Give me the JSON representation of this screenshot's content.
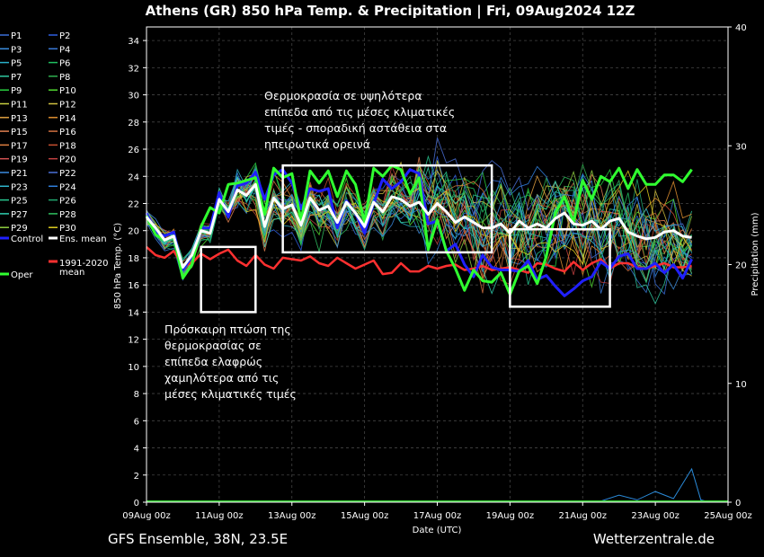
{
  "header": {
    "title": "Athens  (GR)  850 hPa Temp. & Precipitation | Fri, 09Aug2024 12Z"
  },
  "footer": {
    "left": "GFS Ensemble, 38N, 23.5E",
    "right": "Wetterzentrale.de"
  },
  "chart_data": {
    "type": "line",
    "x_ticks": [
      "09Aug 00z",
      "11Aug 00z",
      "13Aug 00z",
      "15Aug 00z",
      "17Aug 00z",
      "19Aug 00z",
      "21Aug 00z",
      "23Aug 00z",
      "25Aug 00z"
    ],
    "xlabel": "Date (UTC)",
    "ylabel": "850 hPa Temp. (°C)",
    "y2label": "Precipitation (mm)",
    "ylim": [
      0,
      35
    ],
    "y_ticks": [
      0,
      2,
      4,
      6,
      8,
      10,
      12,
      14,
      16,
      18,
      20,
      22,
      24,
      26,
      28,
      30,
      32,
      34
    ],
    "y2lim": [
      0,
      40
    ],
    "y2_ticks": [
      0,
      10,
      20,
      30,
      40
    ],
    "grid": true,
    "legend_entries": [
      "P1",
      "P2",
      "P3",
      "P4",
      "P5",
      "P6",
      "P7",
      "P8",
      "P9",
      "P10",
      "P11",
      "P12",
      "P13",
      "P14",
      "P15",
      "P16",
      "P17",
      "P18",
      "P19",
      "P20",
      "P21",
      "P22",
      "P23",
      "P24",
      "P25",
      "P26",
      "P27",
      "P28",
      "P29",
      "P30",
      "Control",
      "Ens. mean",
      "Oper",
      "1991-2020 mean"
    ],
    "legend_colors": [
      "#3a6fd8",
      "#2f5fe0",
      "#3c8ee0",
      "#3a7ad8",
      "#28b0c8",
      "#20c060",
      "#30c8a0",
      "#30b050",
      "#28d040",
      "#50d830",
      "#c8d040",
      "#d0c040",
      "#e0a040",
      "#e09030",
      "#e08050",
      "#d07040",
      "#e08040",
      "#c85030",
      "#d05050",
      "#c04040",
      "#3a8ae0",
      "#4a70d8",
      "#30b8d0",
      "#3080e0",
      "#28c890",
      "#20a870",
      "#30d0b0",
      "#30c060",
      "#90d040",
      "#e0d020",
      "#2020ff",
      "#ffffff",
      "#30ff30",
      "#ff3030"
    ],
    "series": [
      {
        "name": "Ens. mean",
        "values": [
          21,
          20.2,
          19.3,
          19.6,
          17.3,
          18.2,
          20,
          19.8,
          22.3,
          21.4,
          23,
          22.6,
          23.4,
          20.3,
          22.4,
          21.6,
          21.9,
          20.4,
          22.4,
          21.5,
          21.8,
          20.6,
          22.1,
          21.3,
          20.3,
          22.1,
          21.4,
          22.5,
          22.3,
          21.8,
          22.1,
          21.2,
          22,
          21.4,
          20.6,
          21,
          20.6,
          20.2,
          20.2,
          20.5,
          19.8,
          20.7,
          20.2,
          20.5,
          20.2,
          20.9,
          21.3,
          20.5,
          20.4,
          20.7,
          20.1,
          20.7,
          20.9,
          19.9,
          19.6,
          19.4,
          19.5,
          19.9,
          20,
          19.6,
          19.5
        ]
      },
      {
        "name": "Oper",
        "values": [
          21.1,
          19.7,
          19.3,
          19.6,
          16.5,
          17.5,
          20.3,
          21.7,
          21.3,
          23.4,
          23.5,
          23.7,
          23.9,
          21.2,
          24.6,
          23.9,
          24.2,
          20.7,
          24.4,
          23.5,
          24.4,
          22.5,
          24.4,
          23.4,
          20.6,
          24.6,
          24,
          24.8,
          24.5,
          22.7,
          23.9,
          18.6,
          20.8,
          18.5,
          17.2,
          15.6,
          17.1,
          16.3,
          16.2,
          16.9,
          15.3,
          17,
          17.4,
          16.1,
          18.1,
          21.3,
          22.5,
          20.6,
          23.7,
          22.3,
          24,
          23.6,
          24.6,
          23.1,
          24.5,
          23.4,
          23.4,
          24.1,
          24.1,
          23.6,
          24.5
        ]
      },
      {
        "name": "Control",
        "values": [
          21.3,
          19.9,
          19.6,
          19.9,
          17.1,
          18.1,
          20.2,
          20.2,
          22.8,
          21,
          23.3,
          23.5,
          24.3,
          22.3,
          24.1,
          24.5,
          23.5,
          21.6,
          23.1,
          22.9,
          23.1,
          20.2,
          22.2,
          21.3,
          19.8,
          22,
          23.8,
          23.1,
          23.6,
          24.5,
          24.2,
          20.5,
          20.7,
          18.5,
          19,
          17.5,
          16.6,
          18.2,
          17.3,
          17.1,
          17.1,
          17,
          17.8,
          16.4,
          16.7,
          15.9,
          15.2,
          15.7,
          16.3,
          16.6,
          17.7,
          17.2,
          18.1,
          18.3,
          17.2,
          17.2,
          17.6,
          16.9,
          17.5,
          16.5,
          17.9
        ]
      },
      {
        "name": "1991-2020 mean",
        "values": [
          18.8,
          18.2,
          18,
          18.5,
          17.4,
          17.6,
          18.3,
          17.9,
          18.3,
          18.6,
          17.8,
          17.4,
          18.2,
          17.5,
          17.2,
          18,
          17.9,
          17.8,
          18.1,
          17.6,
          17.4,
          18,
          17.6,
          17.2,
          17.5,
          17.8,
          16.8,
          16.9,
          17.6,
          17,
          17,
          17.4,
          17.2,
          17.4,
          17.5,
          17.1,
          17.2,
          17.4,
          17.1,
          17.2,
          17.3,
          17.1,
          16.9,
          17.6,
          17.5,
          17.2,
          17,
          17.7,
          17.1,
          17.6,
          17.9,
          17.2,
          17.6,
          17.6,
          17.3,
          17.2,
          17.4,
          17.6,
          17.3,
          17.3,
          17.4
        ]
      }
    ],
    "annotations": [
      {
        "lines": [
          "Θερμοκρασία σε υψηλότερα",
          "επίπεδα από τις μέσες κλιματικές",
          "τιμές - σποραδική αστάθεια στα",
          "ηπειρωτικά ορεινά"
        ]
      },
      {
        "lines": [
          "Πρόσκαιρη πτώση της",
          "θερμοκρασίας σε",
          "επίπεδα ελαφρώς",
          "χαμηλότερα από τις",
          "μέσες κλιματικές τιμές"
        ]
      }
    ],
    "highlight_boxes": [
      {
        "x_range": [
          "10Aug 12z",
          "12Aug 00z"
        ],
        "y_range": [
          14,
          18.8
        ]
      },
      {
        "x_range": [
          "12Aug 18z",
          "18Aug 12z"
        ],
        "y_range": [
          18.4,
          24.8
        ]
      },
      {
        "x_range": [
          "19Aug 00z",
          "21Aug 18z"
        ],
        "y_range": [
          14.4,
          20.1
        ]
      }
    ]
  }
}
